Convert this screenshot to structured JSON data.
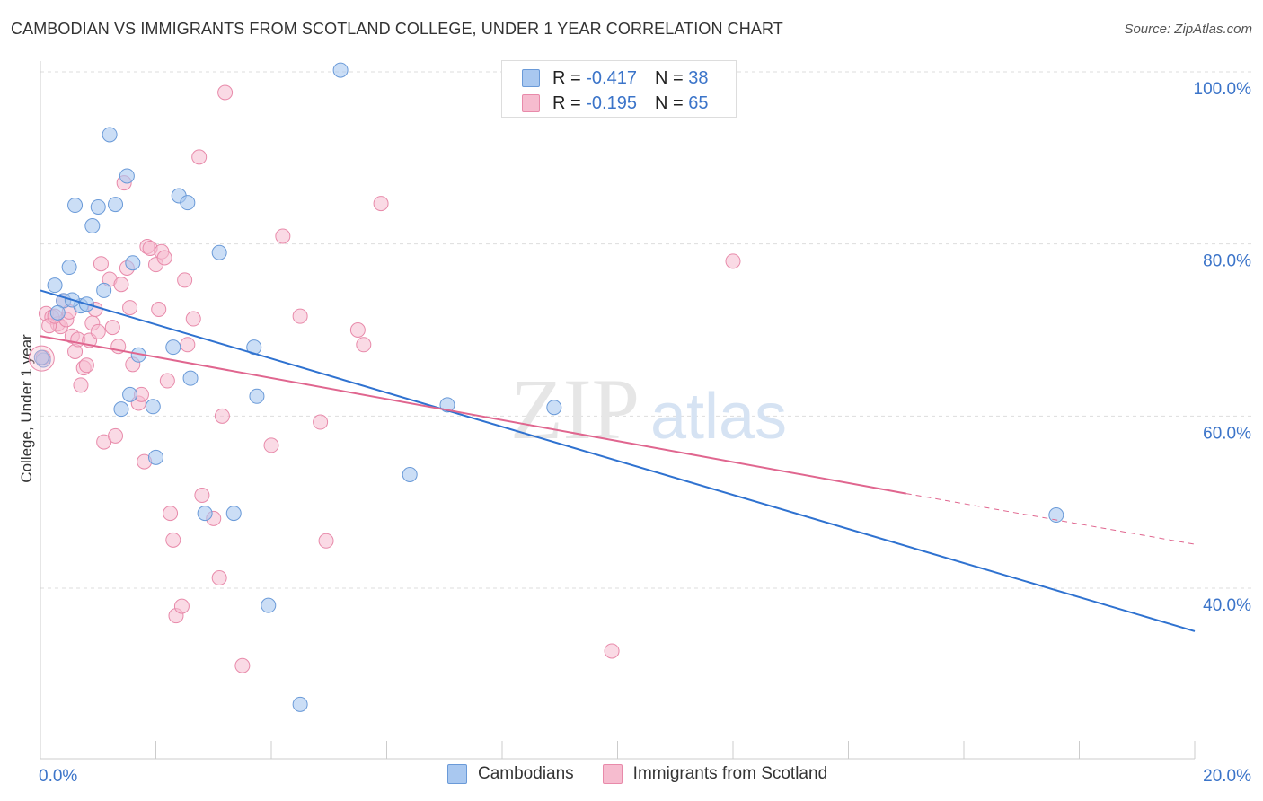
{
  "title": "CAMBODIAN VS IMMIGRANTS FROM SCOTLAND COLLEGE, UNDER 1 YEAR CORRELATION CHART",
  "source": "Source: ZipAtlas.com",
  "watermark": {
    "zip": "ZIP",
    "atlas": "atlas"
  },
  "legend_top": {
    "r_label": "R =",
    "n_label": "N =",
    "series": [
      {
        "r": "-0.417",
        "n": "38"
      },
      {
        "r": "-0.195",
        "n": "65"
      }
    ]
  },
  "legend_bottom": [
    "Cambodians",
    "Immigrants from Scotland"
  ],
  "colors": {
    "blue_fill": "#a9c8f0",
    "blue_stroke": "#6a9ad8",
    "blue_line": "#2f72d0",
    "pink_fill": "#f6bccf",
    "pink_stroke": "#e88aaa",
    "pink_line": "#e0668f",
    "tick_label": "#3b74c9",
    "grid": "#dddddd"
  },
  "chart_data": {
    "type": "scatter",
    "title": "CAMBODIAN VS IMMIGRANTS FROM SCOTLAND COLLEGE, UNDER 1 YEAR CORRELATION CHART",
    "xlabel": "",
    "ylabel": "College, Under 1 year",
    "xlim": [
      0,
      20
    ],
    "ylim": [
      20,
      102
    ],
    "x_ticks": [
      {
        "v": 0,
        "label": "0.0%"
      },
      {
        "v": 20,
        "label": "20.0%"
      }
    ],
    "y_ticks": [
      {
        "v": 100,
        "label": "100.0%"
      },
      {
        "v": 80,
        "label": "80.0%"
      },
      {
        "v": 60,
        "label": "60.0%"
      },
      {
        "v": 40,
        "label": "40.0%"
      }
    ],
    "grid": "horizontal dashed",
    "legend_position": "top-center",
    "series": [
      {
        "name": "Cambodians",
        "color": "#a9c8f0",
        "points": [
          [
            0.05,
            66.5
          ],
          [
            0.25,
            75.2
          ],
          [
            0.4,
            73.4
          ],
          [
            0.5,
            77.3
          ],
          [
            0.6,
            84.5
          ],
          [
            0.7,
            72.8
          ],
          [
            0.8,
            73.0
          ],
          [
            0.9,
            82.1
          ],
          [
            1.0,
            84.3
          ],
          [
            1.1,
            74.6
          ],
          [
            1.3,
            84.6
          ],
          [
            1.2,
            92.7
          ],
          [
            1.5,
            87.9
          ],
          [
            1.6,
            77.8
          ],
          [
            1.7,
            67.1
          ],
          [
            1.55,
            62.5
          ],
          [
            1.4,
            60.8
          ],
          [
            1.95,
            61.1
          ],
          [
            2.0,
            55.2
          ],
          [
            2.3,
            68.0
          ],
          [
            2.4,
            85.6
          ],
          [
            2.55,
            84.8
          ],
          [
            2.6,
            64.4
          ],
          [
            2.85,
            48.7
          ],
          [
            3.1,
            79.0
          ],
          [
            3.35,
            48.7
          ],
          [
            3.7,
            68.0
          ],
          [
            3.75,
            62.3
          ],
          [
            3.95,
            38.0
          ],
          [
            4.5,
            26.5
          ],
          [
            5.2,
            100.2
          ],
          [
            6.4,
            53.2
          ],
          [
            7.05,
            61.3
          ],
          [
            8.9,
            61.0
          ],
          [
            17.6,
            48.5
          ],
          [
            0.3,
            72.0
          ],
          [
            0.55,
            73.5
          ],
          [
            0.02,
            66.8
          ]
        ],
        "trend": {
          "x1": 0.0,
          "y1": 74.6,
          "x2": 20.0,
          "y2": 35.0
        }
      },
      {
        "name": "Immigrants from Scotland",
        "color": "#f6bccf",
        "points": [
          [
            0.1,
            71.9
          ],
          [
            0.2,
            71.5
          ],
          [
            0.3,
            70.7
          ],
          [
            0.35,
            70.4
          ],
          [
            0.4,
            73.4
          ],
          [
            0.45,
            71.2
          ],
          [
            0.5,
            72.1
          ],
          [
            0.55,
            69.3
          ],
          [
            0.6,
            67.5
          ],
          [
            0.65,
            68.9
          ],
          [
            0.7,
            63.6
          ],
          [
            0.75,
            65.6
          ],
          [
            0.8,
            65.9
          ],
          [
            0.85,
            68.8
          ],
          [
            0.9,
            70.8
          ],
          [
            0.95,
            72.4
          ],
          [
            1.0,
            69.8
          ],
          [
            1.05,
            77.7
          ],
          [
            1.1,
            57.0
          ],
          [
            1.2,
            75.9
          ],
          [
            1.25,
            70.3
          ],
          [
            1.3,
            57.7
          ],
          [
            1.35,
            68.1
          ],
          [
            1.4,
            75.3
          ],
          [
            1.45,
            87.1
          ],
          [
            1.5,
            77.2
          ],
          [
            1.55,
            72.6
          ],
          [
            1.6,
            66.0
          ],
          [
            1.7,
            61.5
          ],
          [
            1.75,
            62.5
          ],
          [
            1.8,
            54.7
          ],
          [
            1.85,
            79.7
          ],
          [
            1.9,
            79.5
          ],
          [
            2.0,
            77.6
          ],
          [
            2.05,
            72.4
          ],
          [
            2.1,
            79.1
          ],
          [
            2.15,
            78.4
          ],
          [
            2.2,
            64.1
          ],
          [
            2.25,
            48.7
          ],
          [
            2.3,
            45.6
          ],
          [
            2.35,
            36.8
          ],
          [
            2.45,
            37.9
          ],
          [
            2.5,
            75.8
          ],
          [
            2.55,
            68.3
          ],
          [
            2.65,
            71.3
          ],
          [
            2.75,
            90.1
          ],
          [
            2.8,
            50.8
          ],
          [
            3.0,
            48.1
          ],
          [
            3.1,
            41.2
          ],
          [
            3.15,
            60.0
          ],
          [
            3.2,
            97.6
          ],
          [
            3.5,
            31.0
          ],
          [
            4.0,
            56.6
          ],
          [
            4.2,
            80.9
          ],
          [
            4.5,
            71.6
          ],
          [
            4.85,
            59.3
          ],
          [
            4.95,
            45.5
          ],
          [
            5.5,
            70.0
          ],
          [
            5.6,
            68.3
          ],
          [
            5.9,
            84.7
          ],
          [
            9.9,
            32.7
          ],
          [
            12.0,
            78.0
          ],
          [
            0.15,
            70.5
          ],
          [
            0.25,
            71.6
          ],
          [
            0.05,
            66.8
          ]
        ],
        "trend": {
          "x1": 0.0,
          "y1": 69.3,
          "x2": 15.0,
          "y2": 51.0,
          "dashed_to": {
            "x": 20.0,
            "y": 45.1
          }
        }
      }
    ]
  }
}
